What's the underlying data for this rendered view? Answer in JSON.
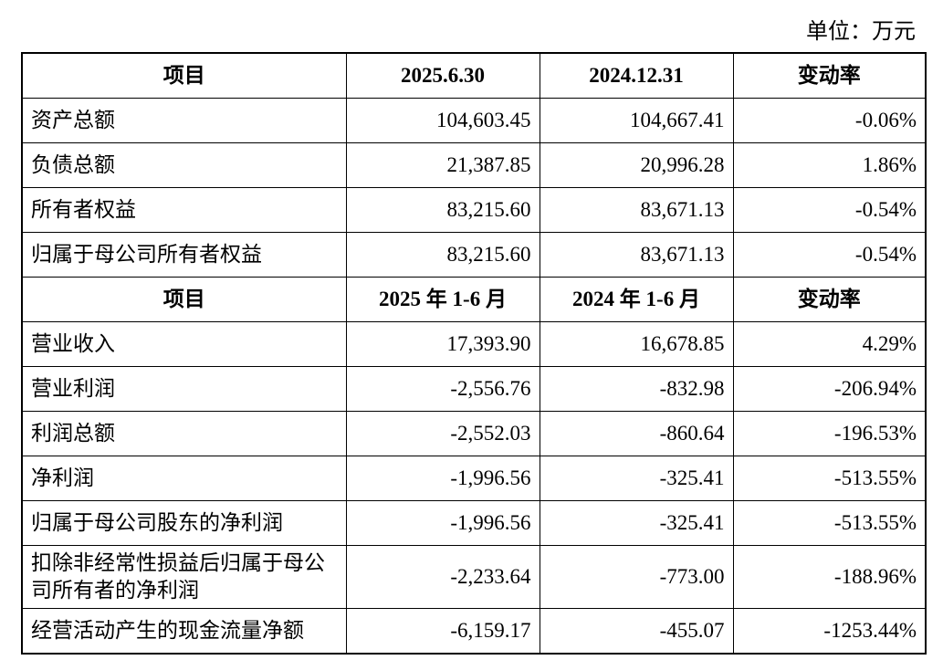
{
  "unit_label": "单位：万元",
  "header1": [
    "项目",
    "2025.6.30",
    "2024.12.31",
    "变动率"
  ],
  "balance_rows": [
    {
      "item": "资产总额",
      "v1": "104,603.45",
      "v2": "104,667.41",
      "rate": "-0.06%"
    },
    {
      "item": "负债总额",
      "v1": "21,387.85",
      "v2": "20,996.28",
      "rate": "1.86%"
    },
    {
      "item": "所有者权益",
      "v1": "83,215.60",
      "v2": "83,671.13",
      "rate": "-0.54%"
    },
    {
      "item": "归属于母公司所有者权益",
      "v1": "83,215.60",
      "v2": "83,671.13",
      "rate": "-0.54%"
    }
  ],
  "header2": [
    "项目",
    "2025 年 1-6 月",
    "2024 年 1-6 月",
    "变动率"
  ],
  "income_rows": [
    {
      "item": "营业收入",
      "v1": "17,393.90",
      "v2": "16,678.85",
      "rate": "4.29%"
    },
    {
      "item": "营业利润",
      "v1": "-2,556.76",
      "v2": "-832.98",
      "rate": "-206.94%"
    },
    {
      "item": "利润总额",
      "v1": "-2,552.03",
      "v2": "-860.64",
      "rate": "-196.53%"
    },
    {
      "item": "净利润",
      "v1": "-1,996.56",
      "v2": "-325.41",
      "rate": "-513.55%"
    },
    {
      "item": "归属于母公司股东的净利润",
      "v1": "-1,996.56",
      "v2": "-325.41",
      "rate": "-513.55%"
    },
    {
      "item": "扣除非经常性损益后归属于母公司所有者的净利润",
      "v1": "-2,233.64",
      "v2": "-773.00",
      "rate": "-188.96%"
    },
    {
      "item": "经营活动产生的现金流量净额",
      "v1": "-6,159.17",
      "v2": "-455.07",
      "rate": "-1253.44%"
    }
  ]
}
